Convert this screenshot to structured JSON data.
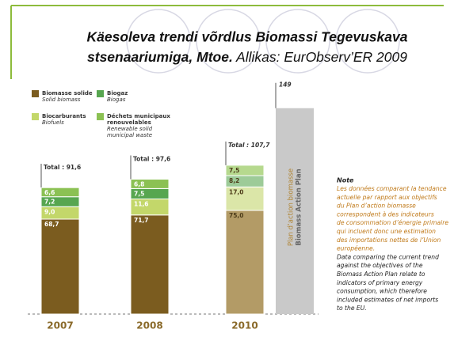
{
  "chart_data": {
    "type": "stacked-bar",
    "title_line1": "Käesoleva trendi võrdlus Biomassi Tegevuskava",
    "title_line2": "stsenaariumiga, Mtoe.",
    "source": "Allikas: EurObserv’ER 2009",
    "categories": [
      "2007",
      "2008",
      "2010"
    ],
    "series": [
      {
        "name": "Biomasse solide",
        "name_en": "Solid biomass",
        "color": "#7b5c1f",
        "colors": [
          "#7b5c1f",
          "#7b5c1f",
          "#b39b66"
        ],
        "values": [
          68.7,
          71.7,
          75.0
        ],
        "value_labels": [
          "68,7",
          "71,7",
          "75,0"
        ]
      },
      {
        "name": "Biocarburants",
        "name_en": "Biofuels",
        "color": "#c3d76a",
        "colors": [
          "#c3d76a",
          "#c3d76a",
          "#dbe6a8"
        ],
        "values": [
          9.0,
          11.6,
          17.0
        ],
        "value_labels": [
          "9,0",
          "11,6",
          "17,0"
        ]
      },
      {
        "name": "Biogaz",
        "name_en": "Biogas",
        "color": "#57a650",
        "colors": [
          "#57a650",
          "#57a650",
          "#9dcb98"
        ],
        "values": [
          7.2,
          7.5,
          8.2
        ],
        "value_labels": [
          "7,2",
          "7,5",
          "8,2"
        ]
      },
      {
        "name": "Déchets municipaux renouvelables",
        "name_en": "Renewable solid municipal waste",
        "color": "#8bc153",
        "colors": [
          "#8bc153",
          "#8bc153",
          "#b6d98e"
        ],
        "values": [
          6.6,
          6.8,
          7.5
        ],
        "value_labels": [
          "6,6",
          "6,8",
          "7,5"
        ]
      }
    ],
    "label_colors": [
      "#ffffff",
      "#ffffff",
      "#4e3d1a"
    ],
    "totals": [
      91.6,
      97.6,
      107.7
    ],
    "total_labels": [
      "Total : 91,6",
      "Total : 97,6",
      "Total : 107,7"
    ],
    "plan": {
      "label_fr": "Plan d’action biomasse",
      "label_en": "Biomass Action Plan",
      "value": 149,
      "value_label": "149",
      "color": "#c9c9c9"
    },
    "ylim": [
      0,
      150
    ],
    "note": {
      "title": "Note",
      "fr": [
        "Les données comparant la tendance",
        "actuelle par rapport aux objectifs",
        "du Plan d’action biomasse",
        "correspondent à des indicateurs",
        "de consommation d’énergie primaire",
        "qui incluent donc une estimation",
        "des importations nettes de l’Union",
        "européenne."
      ],
      "en": [
        "Data comparing the current trend",
        "against the objectives of the",
        "Biomass Action Plan relate to",
        "indicators of primary energy",
        "consumption, which therefore",
        "included estimates of net imports",
        "to the EU."
      ]
    }
  }
}
